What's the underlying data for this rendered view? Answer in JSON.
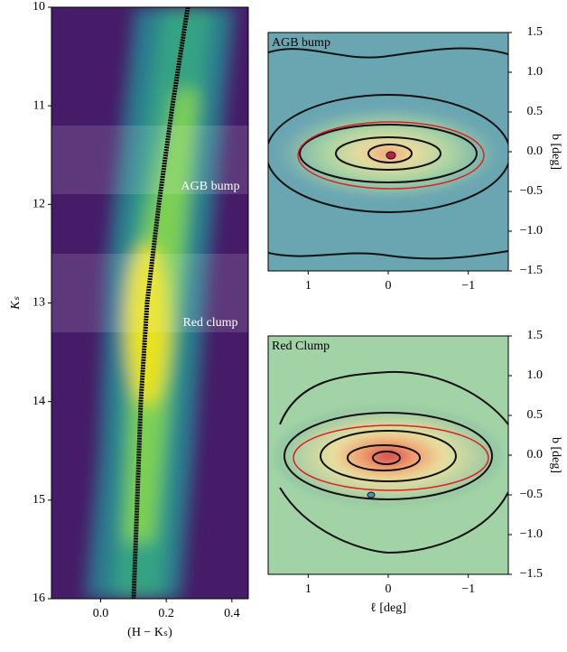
{
  "chart_data": [
    {
      "type": "heatmap",
      "xlabel": "(H − Kₛ)",
      "ylabel": "Kₛ",
      "annotations": [
        "AGB bump",
        "Red clump"
      ],
      "xlim": [
        -0.15,
        0.45
      ],
      "xticks": [
        {
          "value": 0,
          "label": "0.0"
        },
        0.2,
        0.4
      ],
      "ylim": [
        16,
        10
      ],
      "yticks": [
        10,
        11,
        12,
        13,
        14,
        15,
        16
      ]
    },
    {
      "type": "heatmap",
      "title": "AGB bump",
      "ylabel": "b [deg]",
      "xlim": [
        1.5,
        -1.5
      ],
      "xticks": [
        1,
        0,
        {
          "value": -1,
          "label": "−1"
        }
      ],
      "ylim": [
        -1.5,
        1.5
      ],
      "yticks": [
        {
          "value": -1.5,
          "label": "−1.5"
        },
        {
          "value": -1,
          "label": "−1.0"
        },
        {
          "value": -0.5,
          "label": "−0.5"
        },
        {
          "value": 0,
          "label": "0.0"
        },
        0.5,
        {
          "value": 1,
          "label": "1.0"
        },
        1.5
      ]
    },
    {
      "type": "heatmap",
      "title": "Red Clump",
      "ylabel": "b [deg]",
      "xlabel": "ℓ [deg]",
      "xlim": [
        1.5,
        -1.5
      ],
      "xticks": [
        1,
        0,
        {
          "value": -1,
          "label": "−1"
        }
      ],
      "ylim": [
        -1.5,
        1.5
      ],
      "yticks": [
        {
          "value": -1.5,
          "label": "−1.5"
        },
        {
          "value": -1,
          "label": "−1.0"
        },
        {
          "value": -0.5,
          "label": "−0.5"
        },
        {
          "value": 0,
          "label": "0.0"
        },
        0.5,
        {
          "value": 1,
          "label": "1.0"
        },
        1.5
      ]
    }
  ]
}
